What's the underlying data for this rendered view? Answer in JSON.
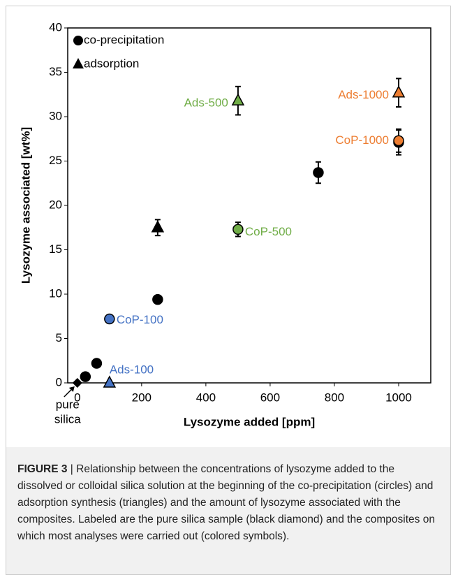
{
  "chart_data": {
    "type": "scatter",
    "xlabel": "Lysozyme added [ppm]",
    "ylabel": "Lysozyme associated [wt%]",
    "xlim": [
      -30,
      1100
    ],
    "ylim": [
      0,
      40
    ],
    "xticks": [
      0,
      200,
      400,
      600,
      800,
      1000
    ],
    "yticks": [
      0,
      5,
      10,
      15,
      20,
      25,
      30,
      35,
      40
    ],
    "legend": "top-left",
    "series": [
      {
        "name": "co-precipitation",
        "marker": "circle",
        "color": "#000000",
        "x": [
          25,
          60,
          250,
          750,
          1000
        ],
        "values": [
          0.7,
          2.2,
          9.4,
          23.7,
          27.1
        ],
        "errors": [
          null,
          null,
          null,
          1.2,
          1.4
        ]
      },
      {
        "name": "adsorption",
        "marker": "triangle",
        "color": "#000000",
        "x": [
          250
        ],
        "values": [
          17.5
        ],
        "errors": [
          0.9
        ]
      }
    ],
    "labeled_points": [
      {
        "label": "CoP-100",
        "marker": "circle",
        "color": "#4472c4",
        "x": 100,
        "value": 7.2,
        "error": null
      },
      {
        "label": "CoP-500",
        "marker": "circle",
        "color": "#70ad47",
        "x": 500,
        "value": 17.3,
        "error": 0.8
      },
      {
        "label": "CoP-1000",
        "marker": "circle",
        "color": "#ed7d31",
        "x": 1000,
        "value": 27.3,
        "error": 1.3
      },
      {
        "label": "Ads-100",
        "marker": "triangle",
        "color": "#4472c4",
        "x": 100,
        "value": 0,
        "error": null
      },
      {
        "label": "Ads-500",
        "marker": "triangle",
        "color": "#70ad47",
        "x": 500,
        "value": 31.8,
        "error": 1.6
      },
      {
        "label": "Ads-1000",
        "marker": "triangle",
        "color": "#ed7d31",
        "x": 1000,
        "value": 32.7,
        "error": 1.6
      },
      {
        "label": [
          "pure",
          "silica"
        ],
        "marker": "diamond",
        "color": "#000000",
        "x": 0,
        "value": 0,
        "error": null
      }
    ]
  },
  "caption": {
    "label": "FIGURE 3",
    "text": "| Relationship between the concentrations of lysozyme added to the dissolved or colloidal silica solution at the beginning of the co-precipitation (circles) and adsorption synthesis (triangles) and the amount of lysozyme associated with the composites. Labeled are the pure silica sample (black diamond) and the composites on which most analyses were carried out (colored symbols)."
  }
}
